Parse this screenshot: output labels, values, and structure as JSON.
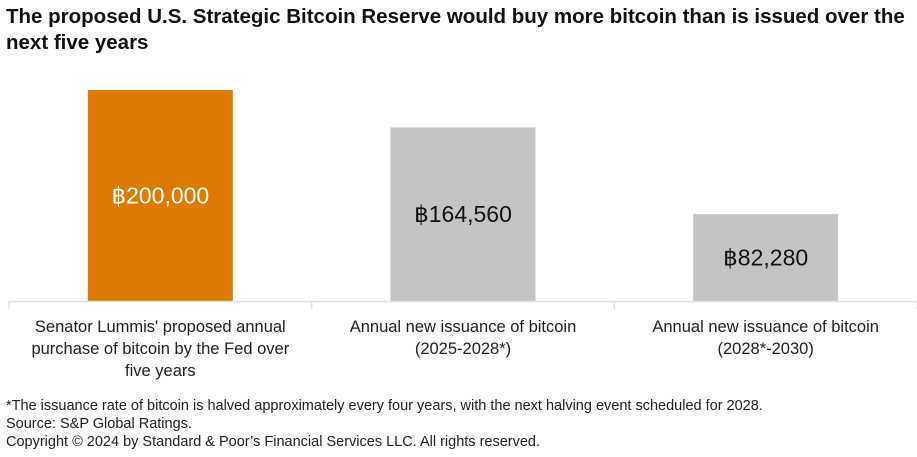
{
  "chart_data": {
    "type": "bar",
    "title": "The proposed U.S. Strategic Bitcoin Reserve would buy more bitcoin than is issued over the next five years",
    "categories": [
      [
        "Senator Lummis' proposed annual",
        "purchase of bitcoin by the Fed over",
        "five years"
      ],
      [
        "Annual new issuance of bitcoin",
        "(2025-2028*)"
      ],
      [
        "Annual new issuance of bitcoin",
        "(2028*-2030)"
      ]
    ],
    "values": [
      200000,
      164560,
      82280
    ],
    "data_labels": [
      "฿200,000",
      "฿164,560",
      "฿82,280"
    ],
    "colors": [
      "#dd7a03",
      "#c3c4c4",
      "#c3c4c4"
    ],
    "label_colors": [
      "#ffffff",
      "#111111",
      "#111111"
    ],
    "ylim": [
      0,
      200000
    ],
    "grid": false,
    "xlabel": "",
    "ylabel": ""
  },
  "footnotes": [
    "*The issuance rate of bitcoin is halved approximately every four years, with the next halving event scheduled for 2028.",
    "Source: S&P Global Ratings.",
    "Copyright © 2024 by Standard & Poor’s Financial Services LLC. All rights reserved."
  ]
}
